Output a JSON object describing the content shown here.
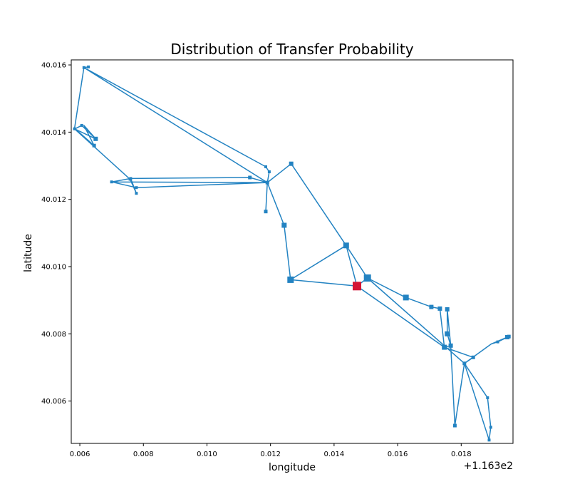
{
  "chart_data": {
    "type": "line",
    "title": "Distribution of Transfer Probability",
    "xlabel": "longitude",
    "ylabel": "latitude",
    "x_offset_label": "+1.163e2",
    "x_offset": 116.3,
    "xlim": [
      0.00573,
      0.01963
    ],
    "ylim": [
      40.00474,
      40.01615
    ],
    "xticks": [
      0.006,
      0.008,
      0.01,
      0.012,
      0.014,
      0.016,
      0.018
    ],
    "xtick_labels": [
      "0.006",
      "0.008",
      "0.010",
      "0.012",
      "0.014",
      "0.016",
      "0.018"
    ],
    "yticks": [
      40.006,
      40.008,
      40.01,
      40.012,
      40.014,
      40.016
    ],
    "ytick_labels": [
      "40.006",
      "40.008",
      "40.010",
      "40.012",
      "40.014",
      "40.016"
    ],
    "grid": false,
    "line_color": "#2383c2",
    "marker_color": "#2383c2",
    "highlight_color": "#d41535",
    "highlight_point": [
      0.01472,
      40.00942
    ],
    "path": [
      [
        0.00627,
        40.01594
      ],
      [
        0.00613,
        40.01592
      ],
      [
        0.00583,
        40.0141
      ],
      [
        0.0065,
        40.0138
      ],
      [
        0.00606,
        40.0142
      ],
      [
        0.00585,
        40.0141
      ],
      [
        0.00645,
        40.0136
      ],
      [
        0.00613,
        40.0142
      ],
      [
        0.0065,
        40.0138
      ],
      [
        0.00583,
        40.0141
      ],
      [
        0.00758,
        40.0126
      ],
      [
        0.00778,
        40.01218
      ],
      [
        0.0076,
        40.01262
      ],
      [
        0.007,
        40.01252
      ],
      [
        0.0119,
        40.0125
      ],
      [
        0.00778,
        40.01235
      ],
      [
        0.007,
        40.01252
      ],
      [
        0.0076,
        40.01262
      ],
      [
        0.01135,
        40.01265
      ],
      [
        0.0119,
        40.0125
      ],
      [
        0.01185,
        40.01164
      ],
      [
        0.0119,
        40.0125
      ],
      [
        0.01196,
        40.01282
      ],
      [
        0.01185,
        40.01297
      ],
      [
        0.00613,
        40.01592
      ],
      [
        0.00613,
        40.01592
      ],
      [
        0.0119,
        40.0125
      ],
      [
        0.01265,
        40.01306
      ],
      [
        0.01438,
        40.01063
      ],
      [
        0.01263,
        40.00961
      ],
      [
        0.01243,
        40.01123
      ],
      [
        0.0119,
        40.0125
      ],
      [
        0.01243,
        40.01123
      ],
      [
        0.01263,
        40.00961
      ],
      [
        0.01472,
        40.00942
      ],
      [
        0.01438,
        40.01063
      ],
      [
        0.01505,
        40.00966
      ],
      [
        0.01626,
        40.00908
      ],
      [
        0.01706,
        40.0088
      ],
      [
        0.01733,
        40.00875
      ],
      [
        0.01747,
        40.0076
      ],
      [
        0.01767,
        40.00765
      ],
      [
        0.01756,
        40.008
      ],
      [
        0.01756,
        40.00873
      ],
      [
        0.01767,
        40.00765
      ],
      [
        0.0178,
        40.00527
      ],
      [
        0.0181,
        40.00712
      ],
      [
        0.01838,
        40.0073
      ],
      [
        0.01747,
        40.0076
      ],
      [
        0.01472,
        40.00942
      ],
      [
        0.01505,
        40.00966
      ],
      [
        0.0181,
        40.00712
      ],
      [
        0.01888,
        40.00484
      ],
      [
        0.01893,
        40.00522
      ],
      [
        0.01883,
        40.0061
      ],
      [
        0.0181,
        40.00712
      ],
      [
        0.01888,
        40.00484
      ],
      [
        0.0181,
        40.00712
      ],
      [
        0.01895,
        40.0077
      ],
      [
        0.01915,
        40.00776
      ],
      [
        0.0195,
        40.00792
      ],
      [
        0.01945,
        40.0079
      ],
      [
        0.01895,
        40.0077
      ]
    ],
    "markers": [
      {
        "x": 0.00627,
        "y": 40.01594,
        "size": 4
      },
      {
        "x": 0.00613,
        "y": 40.01592,
        "size": 4
      },
      {
        "x": 0.00583,
        "y": 40.0141,
        "size": 4
      },
      {
        "x": 0.00606,
        "y": 40.0142,
        "size": 4
      },
      {
        "x": 0.0065,
        "y": 40.0138,
        "size": 6
      },
      {
        "x": 0.00645,
        "y": 40.0136,
        "size": 5
      },
      {
        "x": 0.007,
        "y": 40.01252,
        "size": 4
      },
      {
        "x": 0.00758,
        "y": 40.0126,
        "size": 4
      },
      {
        "x": 0.00778,
        "y": 40.01218,
        "size": 4
      },
      {
        "x": 0.00778,
        "y": 40.01235,
        "size": 4
      },
      {
        "x": 0.0076,
        "y": 40.01262,
        "size": 4
      },
      {
        "x": 0.01135,
        "y": 40.01265,
        "size": 5
      },
      {
        "x": 0.0119,
        "y": 40.0125,
        "size": 5
      },
      {
        "x": 0.01185,
        "y": 40.01164,
        "size": 5
      },
      {
        "x": 0.01196,
        "y": 40.01282,
        "size": 4
      },
      {
        "x": 0.01185,
        "y": 40.01297,
        "size": 4
      },
      {
        "x": 0.01265,
        "y": 40.01306,
        "size": 6
      },
      {
        "x": 0.01243,
        "y": 40.01123,
        "size": 7
      },
      {
        "x": 0.01438,
        "y": 40.01063,
        "size": 8
      },
      {
        "x": 0.01263,
        "y": 40.00961,
        "size": 9
      },
      {
        "x": 0.01505,
        "y": 40.00966,
        "size": 10
      },
      {
        "x": 0.01626,
        "y": 40.00908,
        "size": 8
      },
      {
        "x": 0.01706,
        "y": 40.0088,
        "size": 6
      },
      {
        "x": 0.01733,
        "y": 40.00875,
        "size": 6
      },
      {
        "x": 0.01756,
        "y": 40.00873,
        "size": 6
      },
      {
        "x": 0.01756,
        "y": 40.008,
        "size": 7
      },
      {
        "x": 0.01767,
        "y": 40.00765,
        "size": 6
      },
      {
        "x": 0.01747,
        "y": 40.0076,
        "size": 7
      },
      {
        "x": 0.01838,
        "y": 40.0073,
        "size": 5
      },
      {
        "x": 0.0181,
        "y": 40.00712,
        "size": 5
      },
      {
        "x": 0.0178,
        "y": 40.00527,
        "size": 5
      },
      {
        "x": 0.01883,
        "y": 40.0061,
        "size": 4
      },
      {
        "x": 0.01888,
        "y": 40.00484,
        "size": 4
      },
      {
        "x": 0.01893,
        "y": 40.00522,
        "size": 4
      },
      {
        "x": 0.01915,
        "y": 40.00776,
        "size": 4
      },
      {
        "x": 0.01945,
        "y": 40.0079,
        "size": 6
      },
      {
        "x": 0.0195,
        "y": 40.00792,
        "size": 5
      }
    ]
  }
}
